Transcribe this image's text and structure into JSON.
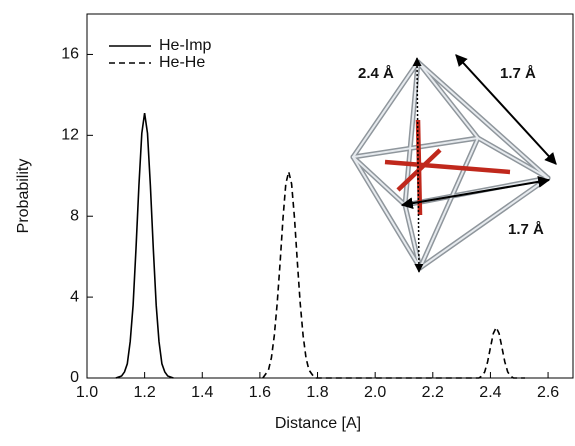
{
  "chart_data": {
    "type": "line",
    "xlabel": "Distance [A]",
    "ylabel": "Probability",
    "xlim": [
      1.0,
      2.69
    ],
    "ylim": [
      0,
      18
    ],
    "xticks": [
      {
        "value": 1.0,
        "label": "1.0"
      },
      1.2,
      1.4,
      1.6,
      1.8,
      {
        "value": 2.0,
        "label": "2.0"
      },
      2.2,
      2.4,
      2.6
    ],
    "yticks": [
      0,
      4,
      8,
      12,
      16
    ],
    "legend": "upper left",
    "series": [
      {
        "name": "He-Imp",
        "color": "#000000",
        "dash": "solid",
        "x": [
          1.1,
          1.12,
          1.13,
          1.14,
          1.15,
          1.16,
          1.17,
          1.18,
          1.19,
          1.2,
          1.21,
          1.22,
          1.23,
          1.24,
          1.25,
          1.26,
          1.27,
          1.28,
          1.3
        ],
        "values": [
          0,
          0.1,
          0.3,
          0.7,
          1.8,
          3.6,
          6.4,
          9.5,
          12.1,
          13.1,
          12.1,
          9.5,
          6.4,
          3.6,
          1.8,
          0.7,
          0.3,
          0.1,
          0
        ]
      },
      {
        "name": "He-He",
        "color": "#000000",
        "dash": "dashed",
        "x": [
          1.61,
          1.62,
          1.63,
          1.64,
          1.65,
          1.66,
          1.67,
          1.68,
          1.69,
          1.7,
          1.71,
          1.72,
          1.73,
          1.74,
          1.75,
          1.76,
          1.77,
          1.78,
          1.79,
          2.36,
          2.37,
          2.38,
          2.39,
          2.4,
          2.41,
          2.42,
          2.43,
          2.44,
          2.45,
          2.46,
          2.47,
          2.48,
          2.49,
          2.52
        ],
        "values": [
          0,
          0.2,
          0.4,
          1.0,
          2.1,
          3.7,
          5.7,
          7.9,
          9.6,
          10.2,
          9.6,
          7.9,
          5.7,
          3.7,
          2.1,
          1.0,
          0.4,
          0.2,
          0,
          0,
          0.1,
          0.3,
          0.8,
          1.5,
          2.2,
          2.5,
          2.2,
          1.5,
          0.8,
          0.3,
          0.1,
          0,
          0,
          0
        ]
      }
    ],
    "annotations": [
      "2.4 Å",
      "1.7 Å",
      "1.7 Å"
    ]
  }
}
